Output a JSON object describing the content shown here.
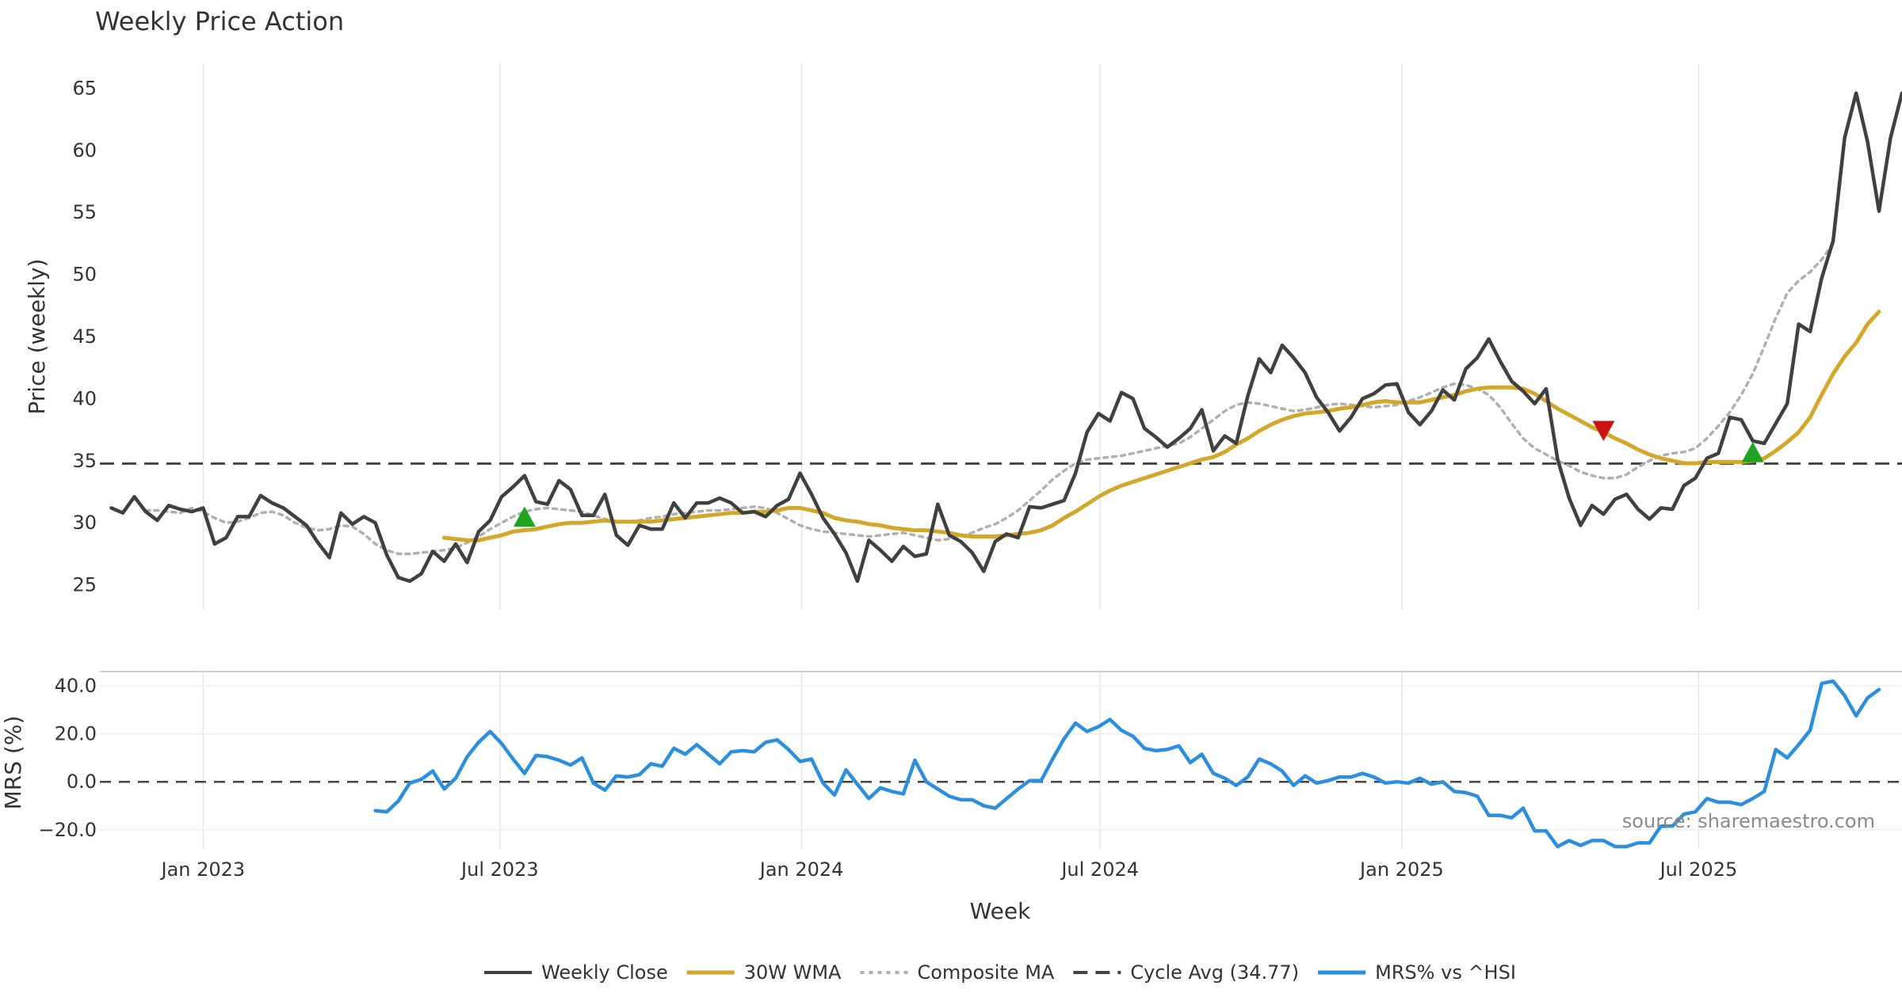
{
  "title": "Weekly Price Action",
  "source_note": "source: sharemaestro.com",
  "colors": {
    "close": "#404040",
    "wma": "#d4a62a",
    "composite": "#b0b0b0",
    "cycle": "#444444",
    "mrs": "#2b8fe0",
    "buy": "#1fa51f",
    "sell": "#cc1111",
    "grid": "#e6e6e6"
  },
  "legend": [
    {
      "key": "close",
      "label": "Weekly Close",
      "style": "solid"
    },
    {
      "key": "wma",
      "label": "30W WMA",
      "style": "solid"
    },
    {
      "key": "composite",
      "label": "Composite MA",
      "style": "dotted"
    },
    {
      "key": "cycle",
      "label": "Cycle Avg (34.77)",
      "style": "dashed"
    },
    {
      "key": "mrs",
      "label": "MRS% vs ^HSI",
      "style": "solid"
    }
  ],
  "chart_data": {
    "type": "line",
    "xlabel": "Week",
    "x_ticks": [
      "Jan 2023",
      "Jul 2023",
      "Jan 2024",
      "Jul 2024",
      "Jan 2025",
      "Jul 2025"
    ],
    "x_tick_dates": [
      "2023-01-01",
      "2023-07-01",
      "2024-01-01",
      "2024-07-01",
      "2025-01-01",
      "2025-07-01"
    ],
    "x_range": [
      "2022-10-30",
      "2025-11-02"
    ],
    "price_panel": {
      "ylabel": "Price (weekly)",
      "ylim": [
        23,
        67
      ],
      "y_ticks": [
        25,
        30,
        35,
        40,
        45,
        50,
        55,
        60,
        65
      ],
      "cycle_avg": 34.77,
      "series": [
        {
          "name": "Weekly Close",
          "start_week": "2022-11-06",
          "values": [
            31.2,
            30.8,
            32.1,
            30.9,
            30.2,
            31.4,
            31.1,
            30.9,
            31.2,
            28.3,
            28.8,
            30.5,
            30.5,
            32.2,
            31.6,
            31.2,
            30.5,
            29.8,
            28.4,
            27.2,
            30.8,
            29.9,
            30.5,
            30.0,
            27.4,
            25.6,
            25.3,
            25.9,
            27.7,
            26.9,
            28.3,
            26.8,
            29.3,
            30.2,
            32.1,
            32.9,
            33.8,
            31.7,
            31.5,
            33.4,
            32.7,
            30.6,
            30.6,
            32.3,
            29.0,
            28.2,
            29.8,
            29.5,
            29.5,
            31.6,
            30.4,
            31.6,
            31.6,
            32.0,
            31.6,
            30.8,
            30.9,
            30.5,
            31.4,
            31.9,
            34.0,
            32.3,
            30.4,
            29.1,
            27.6,
            25.3,
            28.6,
            27.8,
            26.9,
            28.1,
            27.3,
            27.5,
            31.5,
            29.0,
            28.5,
            27.6,
            26.1,
            28.5,
            29.1,
            28.8,
            31.3,
            31.2,
            31.5,
            31.8,
            34.0,
            37.3,
            38.8,
            38.2,
            40.5,
            40.0,
            37.6,
            36.9,
            36.1,
            36.8,
            37.6,
            39.1,
            35.8,
            37.0,
            36.4,
            40.2,
            43.2,
            42.1,
            44.3,
            43.3,
            42.1,
            40.1,
            38.9,
            37.4,
            38.5,
            40.0,
            40.4,
            41.1,
            41.2,
            38.9,
            37.9,
            39.0,
            40.7,
            39.9,
            42.4,
            43.3,
            44.8,
            43.0,
            41.4,
            40.6,
            39.6,
            40.8,
            35.1,
            32.0,
            29.8,
            31.4,
            30.7,
            31.9,
            32.3,
            31.1,
            30.3,
            31.2,
            31.1,
            33.0,
            33.6,
            35.2,
            35.6,
            38.5,
            38.3,
            36.6,
            36.4,
            38.0,
            39.6,
            46.0,
            45.4,
            49.7,
            52.7,
            61.0,
            64.6,
            60.7,
            55.1,
            61.0,
            64.6
          ]
        },
        {
          "name": "30W WMA",
          "start_week": "2023-05-28",
          "values": [
            28.8,
            28.7,
            28.6,
            28.6,
            28.8,
            29.0,
            29.3,
            29.4,
            29.5,
            29.7,
            29.9,
            30.0,
            30.0,
            30.1,
            30.2,
            30.1,
            30.1,
            30.1,
            30.1,
            30.2,
            30.3,
            30.4,
            30.5,
            30.6,
            30.7,
            30.8,
            30.8,
            30.9,
            30.9,
            31.0,
            31.2,
            31.2,
            31.0,
            30.8,
            30.4,
            30.2,
            30.1,
            29.9,
            29.8,
            29.6,
            29.5,
            29.4,
            29.4,
            29.3,
            29.2,
            29.0,
            28.9,
            28.9,
            28.9,
            29.0,
            29.1,
            29.2,
            29.4,
            29.8,
            30.4,
            30.9,
            31.5,
            32.1,
            32.6,
            33.0,
            33.3,
            33.6,
            33.9,
            34.2,
            34.5,
            34.8,
            35.1,
            35.3,
            35.7,
            36.3,
            36.8,
            37.4,
            37.9,
            38.3,
            38.6,
            38.8,
            38.9,
            39.0,
            39.2,
            39.3,
            39.5,
            39.7,
            39.8,
            39.7,
            39.7,
            39.7,
            39.9,
            40.1,
            40.3,
            40.6,
            40.8,
            40.9,
            40.9,
            40.9,
            40.8,
            40.4,
            39.8,
            39.2,
            38.7,
            38.2,
            37.7,
            37.3,
            36.8,
            36.4,
            35.9,
            35.5,
            35.2,
            35.0,
            34.8,
            34.8,
            34.9,
            34.9,
            34.9,
            34.9,
            35.0,
            35.2,
            35.8,
            36.5,
            37.3,
            38.5,
            40.3,
            42.0,
            43.4,
            44.5,
            46.0,
            47.0
          ]
        },
        {
          "name": "Composite MA",
          "start_week": "2022-11-27",
          "values": [
            31.0,
            31.0,
            30.9,
            30.8,
            31.2,
            30.9,
            30.4,
            30.0,
            30.1,
            30.4,
            30.8,
            30.9,
            30.6,
            30.0,
            29.6,
            29.4,
            29.5,
            29.8,
            29.7,
            29.1,
            28.3,
            27.8,
            27.5,
            27.5,
            27.6,
            27.7,
            27.8,
            28.0,
            28.4,
            28.9,
            29.5,
            30.0,
            30.5,
            30.9,
            31.1,
            31.2,
            31.1,
            31.0,
            30.9,
            30.6,
            30.3,
            30.1,
            30.1,
            30.2,
            30.4,
            30.5,
            30.7,
            30.8,
            30.9,
            31.0,
            31.0,
            31.1,
            31.2,
            31.3,
            31.2,
            30.8,
            30.3,
            29.8,
            29.5,
            29.3,
            29.2,
            29.1,
            29.0,
            28.9,
            29.0,
            29.1,
            29.2,
            29.0,
            28.8,
            28.6,
            28.7,
            28.9,
            29.2,
            29.6,
            29.9,
            30.4,
            31.0,
            31.8,
            32.6,
            33.5,
            34.2,
            34.8,
            35.1,
            35.2,
            35.3,
            35.4,
            35.6,
            35.8,
            36.0,
            36.2,
            36.4,
            36.9,
            37.6,
            38.3,
            39.0,
            39.5,
            39.7,
            39.6,
            39.4,
            39.2,
            39.0,
            39.1,
            39.3,
            39.5,
            39.6,
            39.5,
            39.4,
            39.3,
            39.4,
            39.5,
            39.8,
            40.1,
            40.5,
            40.9,
            41.2,
            41.1,
            40.8,
            40.3,
            39.3,
            38.0,
            36.8,
            36.0,
            35.5,
            35.0,
            34.6,
            34.1,
            33.8,
            33.6,
            33.6,
            33.9,
            34.5,
            35.0,
            35.4,
            35.6,
            35.7,
            36.0,
            36.8,
            37.8,
            38.9,
            40.3,
            42.0,
            44.2,
            46.5,
            48.5,
            49.5,
            50.2,
            51.2,
            52.5
          ]
        }
      ],
      "signals": [
        {
          "type": "buy",
          "week": "2023-07-16",
          "value": 30.3
        },
        {
          "type": "sell",
          "week": "2025-05-04",
          "value": 37.6
        },
        {
          "type": "buy",
          "week": "2025-08-03",
          "value": 35.5
        }
      ]
    },
    "mrs_panel": {
      "ylabel": "MRS (%)",
      "ylim": [
        -28,
        46
      ],
      "y_ticks": [
        -20.0,
        0.0,
        20.0,
        40.0
      ],
      "y_tick_labels": [
        "−20.0",
        "0.0",
        "20.0",
        "40.0"
      ],
      "series": [
        {
          "name": "MRS% vs ^HSI",
          "start_week": "2023-04-16",
          "values": [
            -12,
            -12.5,
            -8,
            -0.5,
            1,
            4.5,
            -3,
            1.5,
            10.5,
            16.5,
            21,
            16,
            9.5,
            3.5,
            11,
            10.5,
            9,
            7,
            10,
            -0.5,
            -3.5,
            2.5,
            2,
            3,
            7.5,
            6.5,
            14,
            11.5,
            15.5,
            11.5,
            7.5,
            12.5,
            13,
            12.5,
            16.5,
            17.5,
            13.5,
            8.5,
            9.5,
            -0.5,
            -5.5,
            5,
            -1,
            -7,
            -2.5,
            -4,
            -5,
            9,
            0,
            -3,
            -6,
            -7.5,
            -7.5,
            -10,
            -11,
            -7,
            -3,
            0.5,
            0.5,
            9.5,
            18,
            24.5,
            21,
            23,
            26,
            21.5,
            19,
            14,
            13,
            13.5,
            15,
            8,
            11.5,
            3.5,
            1.5,
            -1.5,
            2,
            9.5,
            7.5,
            4.5,
            -1.5,
            2.5,
            -0.5,
            0.5,
            2,
            2,
            3.5,
            2,
            -0.5,
            0,
            -0.5,
            1.5,
            -1,
            0,
            -4,
            -4.5,
            -6,
            -14,
            -14,
            -15,
            -11,
            -20.5,
            -20.5,
            -27,
            -24.5,
            -26.5,
            -24.5,
            -24.5,
            -27,
            -27,
            -25.5,
            -25.5,
            -18.5,
            -18.5,
            -13.5,
            -12.5,
            -7,
            -8.5,
            -8.5,
            -9.5,
            -7,
            -4,
            13.5,
            10,
            15.5,
            21.5,
            41,
            42,
            36,
            27.5,
            35,
            38.5
          ]
        }
      ]
    }
  }
}
